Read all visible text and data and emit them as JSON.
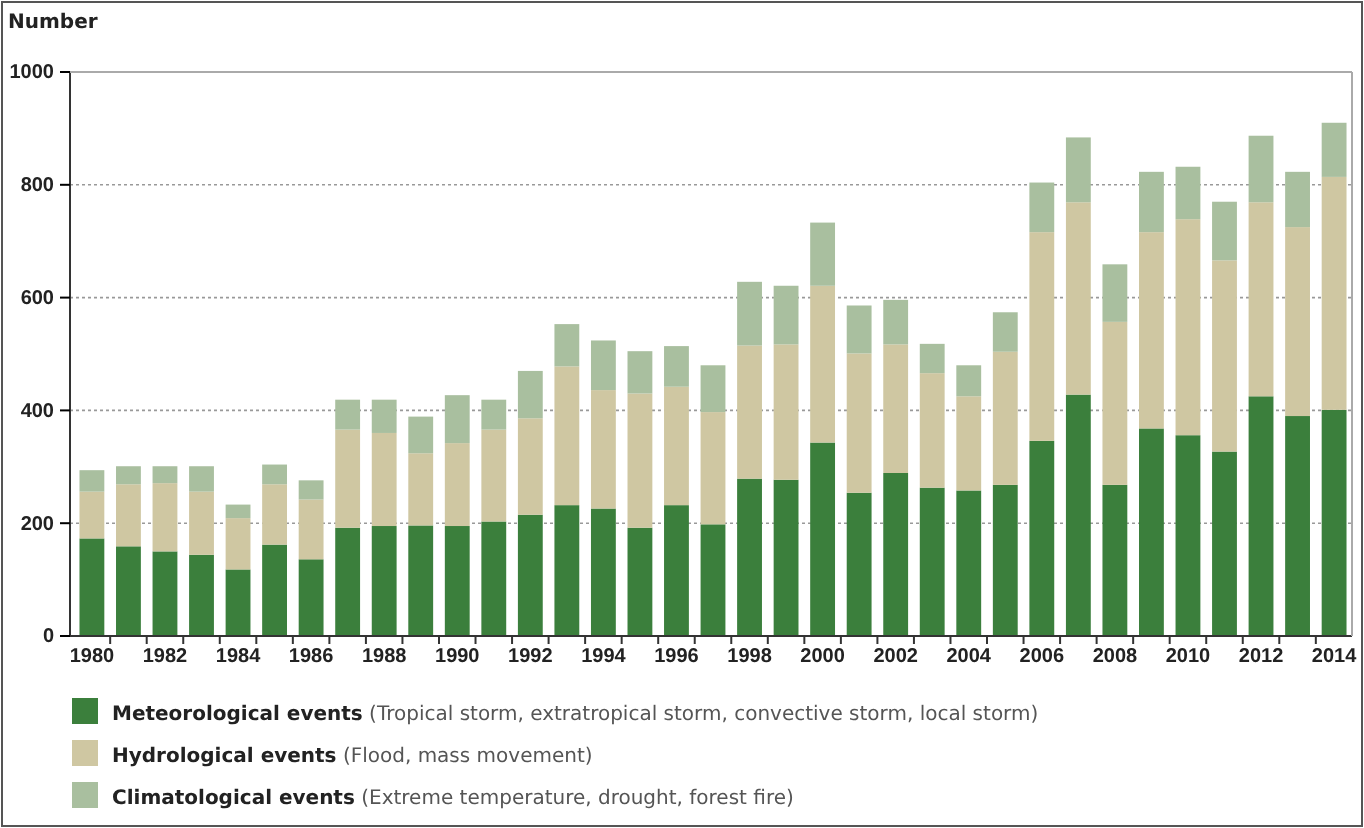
{
  "chart_data": {
    "type": "bar",
    "stacked": true,
    "ylabel": "Number",
    "categories": [
      "1980",
      null,
      "1982",
      null,
      "1984",
      null,
      "1986",
      null,
      "1988",
      null,
      "1990",
      null,
      "1992",
      null,
      "1994",
      null,
      "1996",
      null,
      "1998",
      null,
      "2000",
      null,
      "2002",
      null,
      "2004",
      null,
      "2006",
      null,
      "2008",
      null,
      "2010",
      null,
      "2012",
      null,
      "2014"
    ],
    "series": [
      {
        "name": "Meteorological events (Tropical storm, extratropical storm, convective storm, local storm)",
        "color": "#3b7f3c",
        "values": [
          173,
          159,
          150,
          144,
          118,
          162,
          136,
          192,
          195,
          196,
          195,
          203,
          215,
          232,
          226,
          192,
          232,
          198,
          279,
          277,
          343,
          254,
          289,
          263,
          258,
          268,
          346,
          428,
          268,
          368,
          356,
          327,
          425,
          390,
          401
        ]
      },
      {
        "name": "Hydrological events (Flood, mass movement)",
        "color": "#cfc7a2",
        "values": [
          83,
          110,
          121,
          112,
          91,
          107,
          106,
          174,
          165,
          128,
          147,
          163,
          171,
          246,
          210,
          238,
          210,
          199,
          236,
          240,
          278,
          247,
          228,
          203,
          167,
          236,
          370,
          341,
          289,
          348,
          383,
          339,
          344,
          335,
          413
        ]
      },
      {
        "name": "Climatological events (Extreme temperature, drought, forest fire)",
        "color": "#a9bf9f",
        "values": [
          38,
          32,
          30,
          45,
          24,
          35,
          34,
          53,
          59,
          65,
          85,
          53,
          84,
          75,
          88,
          75,
          72,
          83,
          113,
          104,
          112,
          85,
          79,
          52,
          55,
          70,
          88,
          115,
          102,
          107,
          93,
          104,
          118,
          98,
          96
        ]
      }
    ],
    "ylim": [
      0,
      1000
    ],
    "yticks": [
      0,
      200,
      400,
      600,
      800,
      1000
    ],
    "grid": "y",
    "legend": "bottom"
  }
}
